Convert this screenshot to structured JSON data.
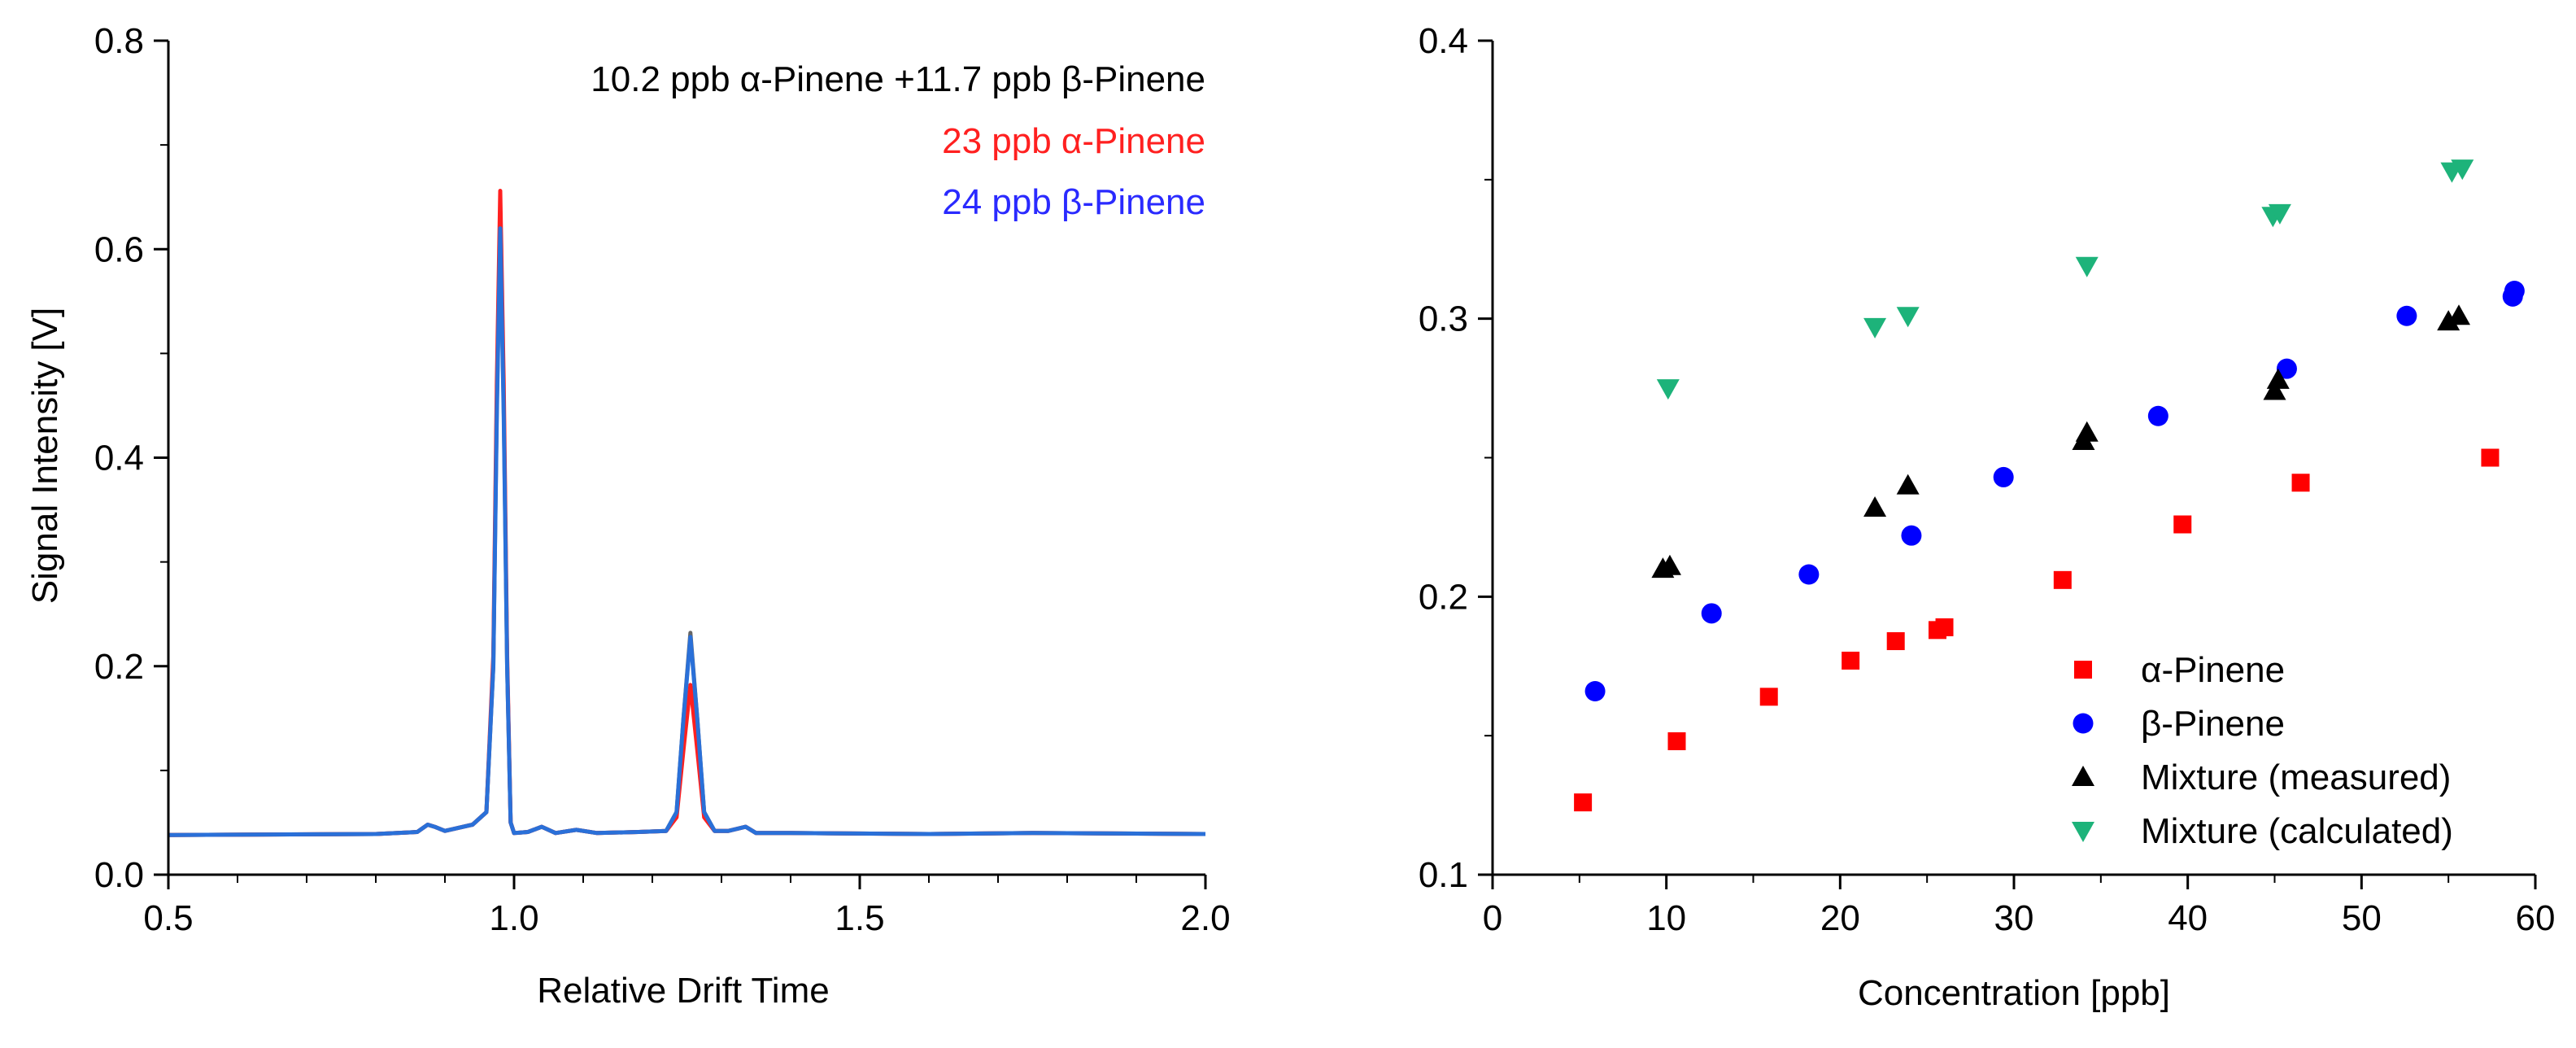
{
  "colors": {
    "alpha": "#ff0000",
    "beta": "#0000ff",
    "mixture_measured": "#000000",
    "mixture_calculated": "#1db37a",
    "trace_mixture": "#666666",
    "trace_alpha": "#ff2020",
    "trace_beta": "#2a70d8"
  },
  "chart_data": [
    {
      "type": "line",
      "title": "",
      "xlabel": "Relative Drift Time",
      "ylabel": "Signal Intensity [V]",
      "xlim": [
        0.5,
        2.0
      ],
      "ylim": [
        0.0,
        0.8
      ],
      "xticks": [
        "0.5",
        "1.0",
        "1.5",
        "2.0"
      ],
      "yticks": [
        "0.0",
        "0.2",
        "0.4",
        "0.6",
        "0.8"
      ],
      "grid": false,
      "legend_position": "top-right",
      "series": [
        {
          "name": "10.2 ppb α-Pinene +11.7 ppb β-Pinene",
          "color_key": "trace_mixture",
          "x": [
            0.5,
            0.8,
            0.86,
            0.875,
            0.885,
            0.9,
            0.94,
            0.96,
            0.97,
            0.975,
            0.98,
            0.985,
            0.99,
            0.995,
            1.0,
            1.02,
            1.04,
            1.06,
            1.09,
            1.12,
            1.18,
            1.22,
            1.235,
            1.245,
            1.255,
            1.265,
            1.275,
            1.29,
            1.31,
            1.335,
            1.35,
            1.4,
            1.6,
            1.75,
            2.0
          ],
          "y": [
            0.038,
            0.039,
            0.041,
            0.048,
            0.046,
            0.042,
            0.048,
            0.06,
            0.2,
            0.45,
            0.625,
            0.45,
            0.2,
            0.05,
            0.04,
            0.041,
            0.046,
            0.04,
            0.043,
            0.04,
            0.041,
            0.042,
            0.06,
            0.15,
            0.232,
            0.15,
            0.06,
            0.042,
            0.042,
            0.046,
            0.04,
            0.04,
            0.039,
            0.04,
            0.039
          ]
        },
        {
          "name": "23 ppb α-Pinene",
          "color_key": "trace_alpha",
          "x": [
            0.5,
            0.8,
            0.86,
            0.875,
            0.885,
            0.9,
            0.94,
            0.96,
            0.97,
            0.975,
            0.98,
            0.985,
            0.99,
            0.995,
            1.0,
            1.02,
            1.04,
            1.06,
            1.09,
            1.12,
            1.18,
            1.22,
            1.235,
            1.245,
            1.255,
            1.265,
            1.275,
            1.29,
            1.31,
            1.335,
            1.35,
            1.4,
            1.6,
            1.75,
            2.0
          ],
          "y": [
            0.038,
            0.039,
            0.041,
            0.048,
            0.046,
            0.042,
            0.048,
            0.06,
            0.21,
            0.47,
            0.656,
            0.47,
            0.21,
            0.05,
            0.04,
            0.041,
            0.046,
            0.04,
            0.043,
            0.04,
            0.041,
            0.042,
            0.055,
            0.12,
            0.182,
            0.12,
            0.055,
            0.042,
            0.042,
            0.046,
            0.04,
            0.04,
            0.039,
            0.04,
            0.039
          ]
        },
        {
          "name": "24 ppb β-Pinene",
          "color_key": "trace_beta",
          "x": [
            0.5,
            0.8,
            0.86,
            0.875,
            0.885,
            0.9,
            0.94,
            0.96,
            0.97,
            0.975,
            0.98,
            0.985,
            0.99,
            0.995,
            1.0,
            1.02,
            1.04,
            1.06,
            1.09,
            1.12,
            1.18,
            1.22,
            1.235,
            1.245,
            1.255,
            1.265,
            1.275,
            1.29,
            1.31,
            1.335,
            1.35,
            1.4,
            1.6,
            1.75,
            2.0
          ],
          "y": [
            0.038,
            0.039,
            0.041,
            0.048,
            0.046,
            0.042,
            0.048,
            0.06,
            0.2,
            0.44,
            0.62,
            0.44,
            0.2,
            0.05,
            0.04,
            0.041,
            0.046,
            0.04,
            0.043,
            0.04,
            0.041,
            0.042,
            0.06,
            0.15,
            0.228,
            0.15,
            0.06,
            0.042,
            0.042,
            0.046,
            0.04,
            0.04,
            0.039,
            0.04,
            0.039
          ]
        }
      ]
    },
    {
      "type": "scatter",
      "title": "",
      "xlabel": "Concentration [ppb]",
      "ylabel": "",
      "xlim": [
        0,
        60
      ],
      "ylim": [
        0.1,
        0.4
      ],
      "xticks": [
        "0",
        "10",
        "20",
        "30",
        "40",
        "50",
        "60"
      ],
      "yticks": [
        "0.1",
        "0.2",
        "0.3",
        "0.4"
      ],
      "grid": false,
      "legend_position": "bottom-right",
      "series": [
        {
          "name": "α-Pinene",
          "marker": "square",
          "color_key": "alpha",
          "x": [
            5.2,
            10.6,
            15.9,
            20.6,
            23.2,
            25.6,
            26.0,
            32.8,
            39.7,
            46.5,
            57.4
          ],
          "y": [
            0.126,
            0.148,
            0.164,
            0.177,
            0.184,
            0.188,
            0.189,
            0.206,
            0.226,
            0.241,
            0.25
          ]
        },
        {
          "name": "β-Pinene",
          "marker": "circle",
          "color_key": "beta",
          "x": [
            5.9,
            12.6,
            18.2,
            24.1,
            29.4,
            38.3,
            45.7,
            52.6,
            58.7,
            58.8
          ],
          "y": [
            0.166,
            0.194,
            0.208,
            0.222,
            0.243,
            0.265,
            0.282,
            0.301,
            0.308,
            0.31
          ]
        },
        {
          "name": "Mixture (measured)",
          "marker": "triangle-up",
          "color_key": "mixture_measured",
          "x": [
            9.8,
            10.2,
            22.0,
            23.9,
            34.0,
            34.2,
            45.0,
            45.2,
            55.0,
            55.6
          ],
          "y": [
            0.21,
            0.211,
            0.232,
            0.24,
            0.256,
            0.259,
            0.274,
            0.278,
            0.299,
            0.301
          ]
        },
        {
          "name": "Mixture (calculated)",
          "marker": "triangle-down",
          "color_key": "mixture_calculated",
          "x": [
            10.1,
            22.0,
            23.9,
            34.2,
            44.9,
            45.3,
            55.2,
            55.8
          ],
          "y": [
            0.275,
            0.297,
            0.301,
            0.319,
            0.337,
            0.338,
            0.353,
            0.354
          ]
        }
      ]
    }
  ]
}
